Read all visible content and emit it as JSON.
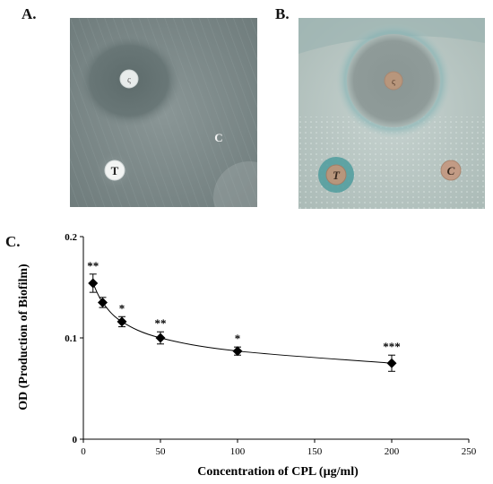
{
  "panels": {
    "a_label": "A.",
    "b_label": "B.",
    "c_label": "C.",
    "plate_a": {
      "marker_t": "T",
      "marker_c": "C",
      "disk_mark": "ς"
    },
    "plate_b": {
      "marker_t": "T",
      "marker_c": "C",
      "disk_mark": "ς"
    }
  },
  "chart_data": {
    "type": "line",
    "xlabel": "Concentration of CPL (µg/ml)",
    "ylabel": "OD (Production of Biofilm)",
    "xlim": [
      0,
      250
    ],
    "ylim": [
      0,
      0.2
    ],
    "xticks": [
      0,
      50,
      100,
      150,
      200,
      250
    ],
    "yticks": [
      0,
      0.1,
      0.2
    ],
    "ytick_labels": [
      "0",
      "0.1",
      "0.2"
    ],
    "grid": false,
    "marker": "diamond",
    "series": [
      {
        "x": [
          6.25,
          12.5,
          25,
          50,
          100,
          200
        ],
        "y": [
          0.154,
          0.135,
          0.116,
          0.1,
          0.087,
          0.075
        ],
        "err": [
          0.009,
          0.005,
          0.005,
          0.006,
          0.004,
          0.008
        ],
        "significance": [
          "**",
          "",
          "*",
          "**",
          "*",
          "***"
        ]
      }
    ]
  }
}
